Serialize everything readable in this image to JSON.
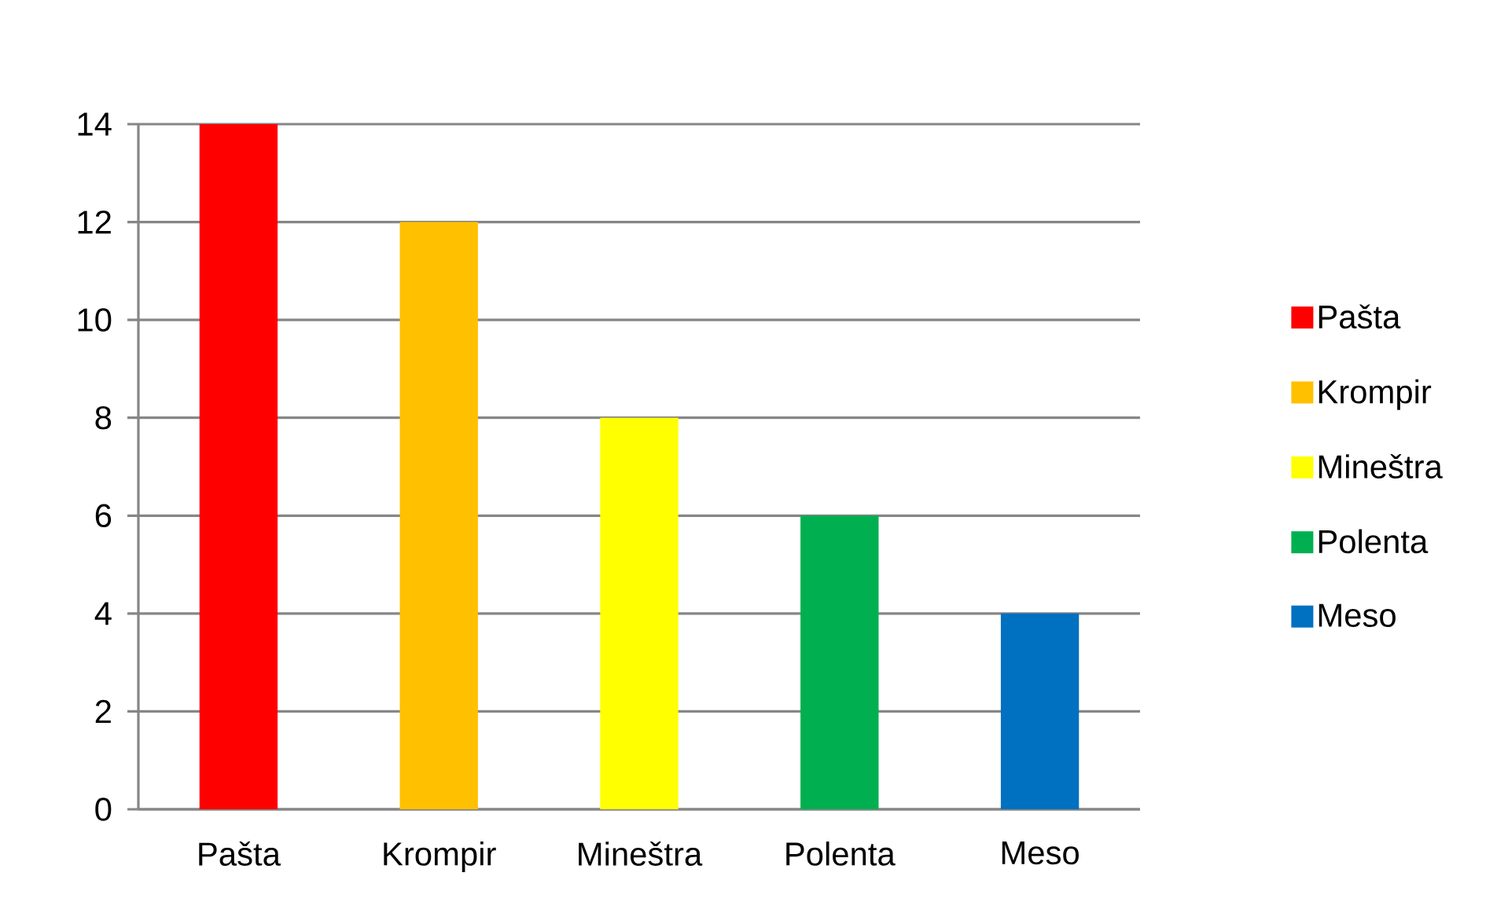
{
  "chart_data": {
    "type": "bar",
    "categories": [
      "Pašta",
      "Krompir",
      "Mineštra",
      "Polenta",
      "Meso"
    ],
    "series": [
      {
        "name": "Pašta",
        "color": "#ff0000",
        "values": [
          14,
          null,
          null,
          null,
          null
        ]
      },
      {
        "name": "Krompir",
        "color": "#ffc000",
        "values": [
          null,
          12,
          null,
          null,
          null
        ]
      },
      {
        "name": "Mineštra",
        "color": "#ffff00",
        "values": [
          null,
          null,
          8,
          null,
          null
        ]
      },
      {
        "name": "Polenta",
        "color": "#00b050",
        "values": [
          null,
          null,
          null,
          6,
          null
        ]
      },
      {
        "name": "Meso",
        "color": "#0070c0",
        "values": [
          null,
          null,
          null,
          null,
          4
        ]
      }
    ],
    "ylim": [
      0,
      14
    ],
    "yticks": [
      0,
      2,
      4,
      6,
      8,
      10,
      12,
      14
    ],
    "grid": "y",
    "legend": "right"
  }
}
